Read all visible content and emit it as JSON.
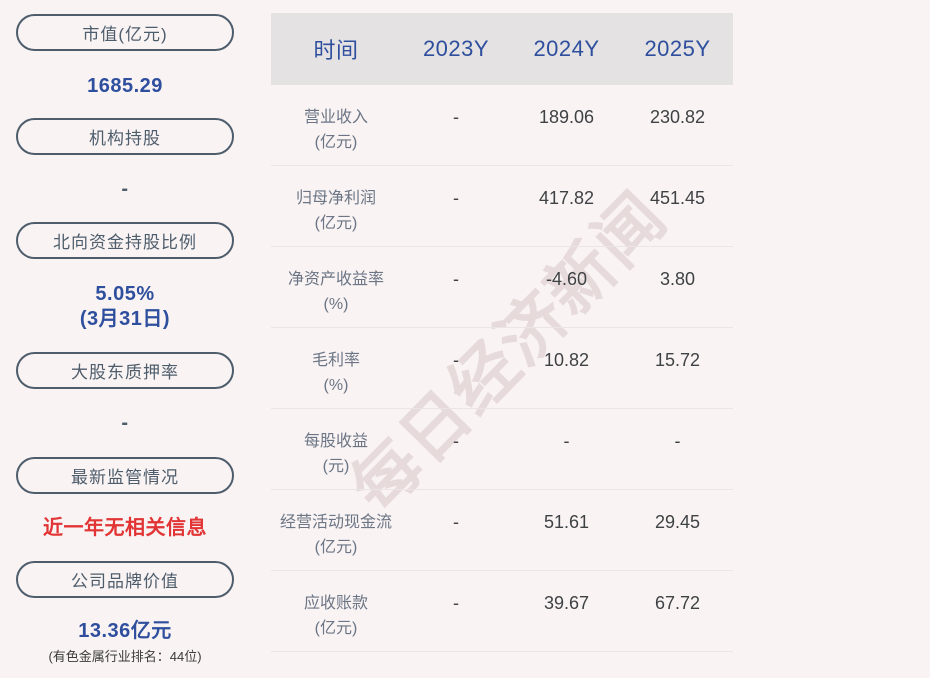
{
  "page": {
    "background_color": "#f9f3f3",
    "accent_blue": "#2e4e9e",
    "alert_red": "#e23434",
    "slate": "#4e5d6c",
    "header_bg": "#e4e2e2"
  },
  "watermark": {
    "text": "每日经济新闻"
  },
  "sidebar": {
    "items": [
      {
        "label": "市值(亿元)",
        "value": "1685.29"
      },
      {
        "label": "机构持股",
        "value": "-"
      },
      {
        "label": "北向资金持股比例",
        "value": "5.05%",
        "value_sub": "(3月31日)"
      },
      {
        "label": "大股东质押率",
        "value": "-"
      },
      {
        "label": "最新监管情况",
        "value": "近一年无相关信息"
      },
      {
        "label": "公司品牌价值",
        "value": "13.36亿元",
        "note": "(有色金属行业排名：44位)"
      }
    ]
  },
  "table": {
    "columns": [
      "时间",
      "2023Y",
      "2024Y",
      "2025Y"
    ],
    "rows": [
      {
        "name": "营业收入",
        "unit": "(亿元)",
        "values": [
          "-",
          "189.06",
          "230.82"
        ]
      },
      {
        "name": "归母净利润",
        "unit": "(亿元)",
        "values": [
          "-",
          "417.82",
          "451.45"
        ]
      },
      {
        "name": "净资产收益率",
        "unit": "(%)",
        "values": [
          "-",
          "-4.60",
          "3.80"
        ]
      },
      {
        "name": "毛利率",
        "unit": "(%)",
        "values": [
          "-",
          "10.82",
          "15.72"
        ]
      },
      {
        "name": "每股收益",
        "unit": "(元)",
        "values": [
          "-",
          "-",
          "-"
        ]
      },
      {
        "name": "经营活动现金流",
        "unit": "(亿元)",
        "values": [
          "-",
          "51.61",
          "29.45"
        ]
      },
      {
        "name": "应收账款",
        "unit": "(亿元)",
        "values": [
          "-",
          "39.67",
          "67.72"
        ]
      }
    ]
  }
}
